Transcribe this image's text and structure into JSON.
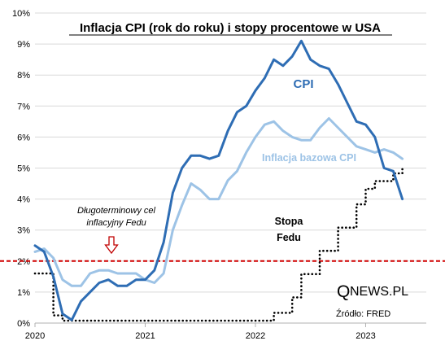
{
  "chart_data": {
    "type": "line",
    "title": "Inflacja CPI (rok do roku) i stopy procentowe w USA",
    "xlabel": "",
    "ylabel": "",
    "xlim": [
      2020.0,
      2023.55
    ],
    "ylim": [
      0,
      10
    ],
    "x_ticks": [
      {
        "value": 2020,
        "label": "2020"
      },
      {
        "value": 2021,
        "label": "2021"
      },
      {
        "value": 2022,
        "label": "2022"
      },
      {
        "value": 2023,
        "label": "2023"
      }
    ],
    "y_ticks": [
      {
        "value": 0,
        "label": "0%"
      },
      {
        "value": 1,
        "label": "1%"
      },
      {
        "value": 2,
        "label": "2%"
      },
      {
        "value": 3,
        "label": "3%"
      },
      {
        "value": 4,
        "label": "4%"
      },
      {
        "value": 5,
        "label": "5%"
      },
      {
        "value": 6,
        "label": "6%"
      },
      {
        "value": 7,
        "label": "7%"
      },
      {
        "value": 8,
        "label": "8%"
      },
      {
        "value": 9,
        "label": "9%"
      },
      {
        "value": 10,
        "label": "10%"
      }
    ],
    "grid": "horizontal",
    "series": [
      {
        "name": "CPI",
        "color": "#2e6db4",
        "style": "solid",
        "x": [
          "2020-01",
          "2020-02",
          "2020-03",
          "2020-04",
          "2020-05",
          "2020-06",
          "2020-07",
          "2020-08",
          "2020-09",
          "2020-10",
          "2020-11",
          "2020-12",
          "2021-01",
          "2021-02",
          "2021-03",
          "2021-04",
          "2021-05",
          "2021-06",
          "2021-07",
          "2021-08",
          "2021-09",
          "2021-10",
          "2021-11",
          "2021-12",
          "2022-01",
          "2022-02",
          "2022-03",
          "2022-04",
          "2022-05",
          "2022-06",
          "2022-07",
          "2022-08",
          "2022-09",
          "2022-10",
          "2022-11",
          "2022-12",
          "2023-01",
          "2023-02",
          "2023-03",
          "2023-04",
          "2023-05"
        ],
        "values": [
          2.5,
          2.3,
          1.5,
          0.3,
          0.1,
          0.7,
          1.0,
          1.3,
          1.4,
          1.2,
          1.2,
          1.4,
          1.4,
          1.7,
          2.6,
          4.2,
          5.0,
          5.4,
          5.4,
          5.3,
          5.4,
          6.2,
          6.8,
          7.0,
          7.5,
          7.9,
          8.5,
          8.3,
          8.6,
          9.1,
          8.5,
          8.3,
          8.2,
          7.7,
          7.1,
          6.5,
          6.4,
          6.0,
          5.0,
          4.9,
          4.0
        ]
      },
      {
        "name": "Inflacja bazowa CPI",
        "color": "#9dc3e6",
        "style": "solid",
        "x": [
          "2020-01",
          "2020-02",
          "2020-03",
          "2020-04",
          "2020-05",
          "2020-06",
          "2020-07",
          "2020-08",
          "2020-09",
          "2020-10",
          "2020-11",
          "2020-12",
          "2021-01",
          "2021-02",
          "2021-03",
          "2021-04",
          "2021-05",
          "2021-06",
          "2021-07",
          "2021-08",
          "2021-09",
          "2021-10",
          "2021-11",
          "2021-12",
          "2022-01",
          "2022-02",
          "2022-03",
          "2022-04",
          "2022-05",
          "2022-06",
          "2022-07",
          "2022-08",
          "2022-09",
          "2022-10",
          "2022-11",
          "2022-12",
          "2023-01",
          "2023-02",
          "2023-03",
          "2023-04",
          "2023-05"
        ],
        "values": [
          2.3,
          2.4,
          2.1,
          1.4,
          1.2,
          1.2,
          1.6,
          1.7,
          1.7,
          1.6,
          1.6,
          1.6,
          1.4,
          1.3,
          1.6,
          3.0,
          3.8,
          4.5,
          4.3,
          4.0,
          4.0,
          4.6,
          4.9,
          5.5,
          6.0,
          6.4,
          6.5,
          6.2,
          6.0,
          5.9,
          5.9,
          6.3,
          6.6,
          6.3,
          6.0,
          5.7,
          5.6,
          5.5,
          5.6,
          5.5,
          5.3
        ]
      },
      {
        "name": "Stopa Fedu",
        "color": "#000000",
        "style": "dotted",
        "x": [
          "2020-01",
          "2020-02",
          "2020-03",
          "2020-04",
          "2021-01",
          "2022-01",
          "2022-02",
          "2022-03",
          "2022-04",
          "2022-05",
          "2022-06",
          "2022-07",
          "2022-08",
          "2022-09",
          "2022-10",
          "2022-11",
          "2022-12",
          "2023-01",
          "2023-02",
          "2023-03",
          "2023-04",
          "2023-05"
        ],
        "values": [
          1.6,
          1.6,
          0.25,
          0.08,
          0.08,
          0.08,
          0.08,
          0.33,
          0.33,
          0.83,
          1.58,
          1.58,
          2.33,
          2.33,
          3.08,
          3.08,
          3.83,
          4.33,
          4.58,
          4.58,
          4.83,
          5.08
        ]
      }
    ],
    "reference_lines": [
      {
        "value": 2.0,
        "color": "#d00000",
        "style": "dashed"
      }
    ]
  },
  "labels": {
    "cpi": "CPI",
    "core": "Inflacja bazowa CPI",
    "fed_line1": "Stopa",
    "fed_line2": "Fedu",
    "target_line1": "Długoterminowy cel",
    "target_line2": "inflacyjny Fedu",
    "brand_q": "Q",
    "brand_rest": "NEWS.PL",
    "source": "Źródło: FRED"
  },
  "colors": {
    "cpi": "#2e6db4",
    "core": "#9dc3e6",
    "fed": "#000000",
    "target": "#d00000",
    "arrow": "#c00000",
    "grid": "#d9d9d9"
  }
}
